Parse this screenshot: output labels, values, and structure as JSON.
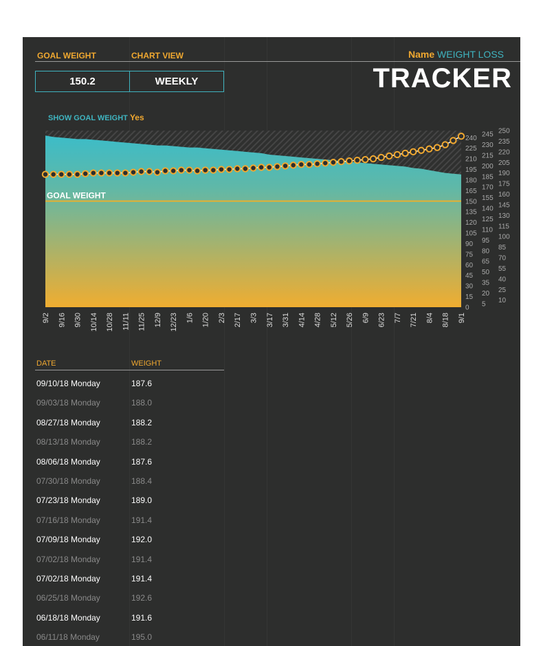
{
  "header": {
    "goal_weight_label": "GOAL WEIGHT",
    "chart_view_label": "CHART VIEW",
    "goal_weight_value": "150.2",
    "chart_view_value": "WEEKLY",
    "name_label": "Name",
    "title_line1": "WEIGHT LOSS",
    "title_line2": "TRACKER",
    "show_goal_label": "SHOW GOAL WEIGHT",
    "show_goal_value": "Yes"
  },
  "colors": {
    "accent_orange": "#f0a830",
    "accent_teal": "#3fb4c0",
    "background": "#2d2e2d"
  },
  "chart_data": {
    "type": "area",
    "goal_label": "GOAL WEIGHT",
    "goal_value": 150.2,
    "ylim": [
      0,
      250
    ],
    "ytick_step": 5,
    "x_ticks": [
      "9/2",
      "9/16",
      "9/30",
      "10/14",
      "10/28",
      "11/11",
      "11/25",
      "12/9",
      "12/23",
      "1/6",
      "1/20",
      "2/3",
      "2/17",
      "3/3",
      "3/17",
      "3/31",
      "4/14",
      "4/28",
      "5/12",
      "5/26",
      "6/9",
      "6/23",
      "7/7",
      "7/21",
      "8/4",
      "8/18",
      "9/1"
    ],
    "series": [
      {
        "type": "area",
        "values": [
          243,
          241,
          240,
          239,
          238,
          238,
          237,
          236,
          235,
          234,
          233,
          232,
          231,
          230,
          229,
          229,
          228,
          227,
          226,
          226,
          225,
          224,
          223,
          222,
          221,
          220,
          219,
          218,
          216,
          215,
          214,
          213,
          212,
          211,
          210,
          209,
          208,
          207,
          206,
          205,
          204,
          203,
          202,
          201,
          200,
          199,
          197,
          196,
          194,
          192,
          190,
          189,
          188
        ]
      },
      {
        "type": "line-markers",
        "values": [
          188,
          188,
          188,
          188,
          188,
          189,
          190,
          190,
          190,
          190,
          190,
          191,
          192,
          192,
          191,
          193,
          193,
          194,
          194,
          193,
          194,
          194,
          195,
          195,
          196,
          196,
          197,
          198,
          198,
          199,
          200,
          201,
          202,
          202,
          203,
          204,
          205,
          206,
          207,
          208,
          209,
          210,
          212,
          214,
          216,
          218,
          220,
          222,
          224,
          226,
          230,
          236,
          242
        ]
      }
    ]
  },
  "table": {
    "headers": [
      "DATE",
      "WEIGHT"
    ],
    "rows": [
      [
        "09/10/18 Monday",
        "187.6"
      ],
      [
        "09/03/18 Monday",
        "188.0"
      ],
      [
        "08/27/18 Monday",
        "188.2"
      ],
      [
        "08/13/18 Monday",
        "188.2"
      ],
      [
        "08/06/18 Monday",
        "187.6"
      ],
      [
        "07/30/18 Monday",
        "188.4"
      ],
      [
        "07/23/18 Monday",
        "189.0"
      ],
      [
        "07/16/18 Monday",
        "191.4"
      ],
      [
        "07/09/18 Monday",
        "192.0"
      ],
      [
        "07/02/18 Monday",
        "191.4"
      ],
      [
        "07/02/18 Monday",
        "191.4"
      ],
      [
        "06/25/18 Monday",
        "192.6"
      ],
      [
        "06/18/18 Monday",
        "191.6"
      ],
      [
        "06/11/18 Monday",
        "195.0"
      ]
    ]
  }
}
